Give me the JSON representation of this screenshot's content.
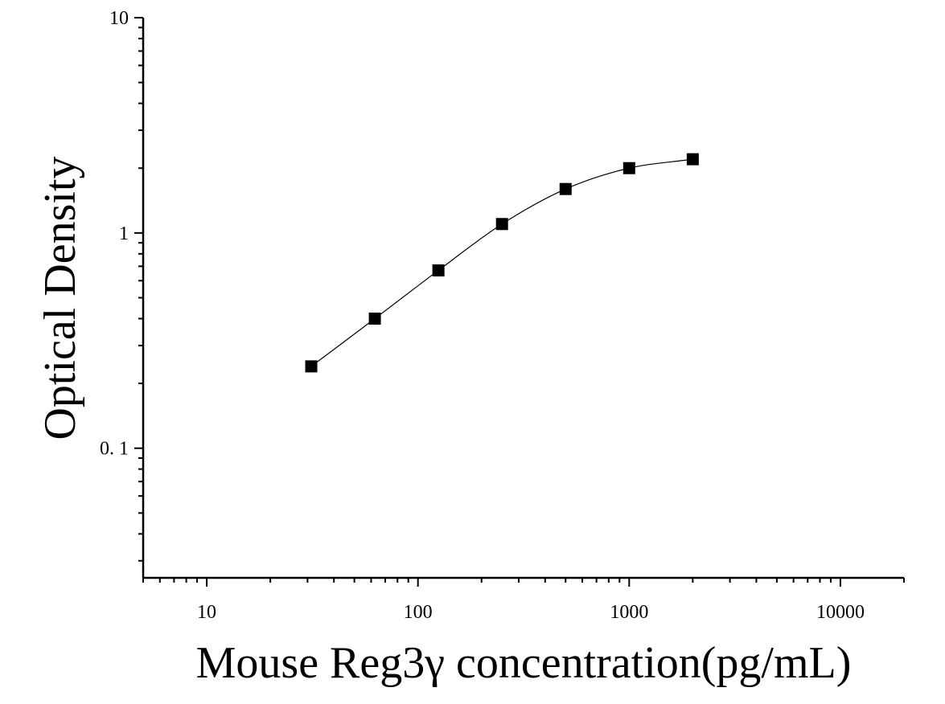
{
  "chart_data": {
    "type": "scatter",
    "title": "",
    "xlabel": "Mouse Reg3γ concentration(pg/mL)",
    "ylabel": "Optical Density",
    "x_scale": "log",
    "y_scale": "log",
    "xlim": [
      5,
      20000
    ],
    "ylim": [
      0.025,
      10
    ],
    "x_ticks": [
      10,
      100,
      1000,
      10000
    ],
    "x_tick_labels": [
      "10",
      "100",
      "1000",
      "10000"
    ],
    "y_ticks": [
      0.1,
      1,
      10
    ],
    "y_tick_labels": [
      "0. 1",
      "1",
      "10"
    ],
    "grid": false,
    "legend": "none",
    "marker": "square",
    "marker_color": "#000000",
    "curve_color": "#000000",
    "series": [
      {
        "x": [
          31.25,
          62.5,
          125,
          250,
          500,
          1000,
          2000
        ],
        "y": [
          0.24,
          0.4,
          0.67,
          1.1,
          1.6,
          2.0,
          2.2
        ]
      }
    ]
  }
}
